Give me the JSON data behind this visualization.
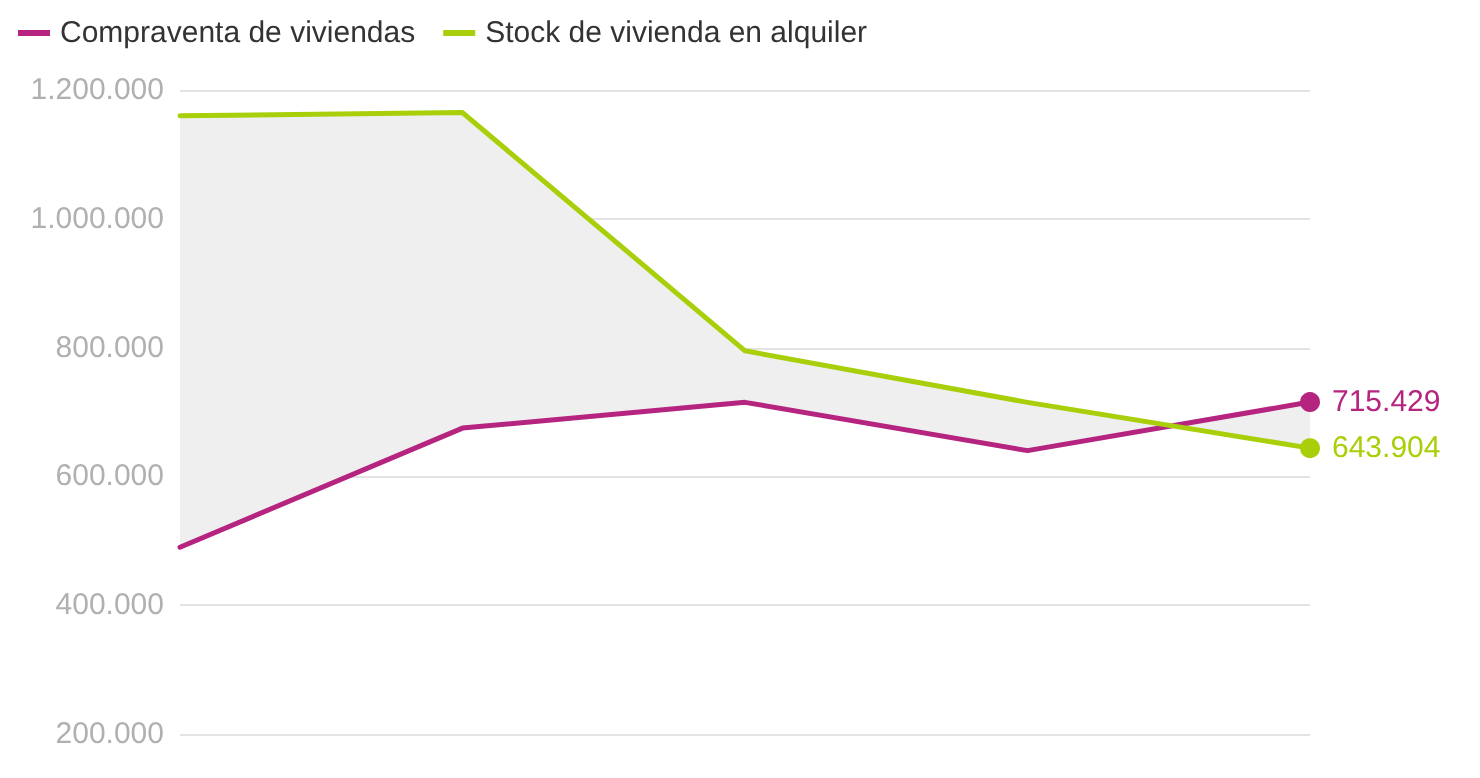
{
  "chart_data": {
    "type": "line",
    "categories": [
      null,
      null,
      null,
      null,
      null
    ],
    "series": [
      {
        "name": "Compraventa de viviendas",
        "color": "#b5247f",
        "values": [
          490000,
          675000,
          715000,
          640000,
          715429
        ],
        "value_labels": [
          null,
          null,
          null,
          null,
          "715.429"
        ]
      },
      {
        "name": "Stock de vivienda en alquiler",
        "color": "#a8cf0a",
        "values": [
          1160000,
          1165000,
          795000,
          715000,
          643904
        ],
        "value_labels": [
          null,
          null,
          null,
          null,
          "643.904"
        ],
        "lower": [
          490000,
          675000,
          715000,
          640000,
          715429
        ],
        "upper": [
          1160000,
          1165000,
          795000,
          715000,
          643904
        ]
      }
    ],
    "ylim": [
      200000,
      1200000
    ],
    "yticks": [
      {
        "value": 200000,
        "label": "200.000"
      },
      {
        "value": 400000,
        "label": "400.000"
      },
      {
        "value": 600000,
        "label": "600.000"
      },
      {
        "value": 800000,
        "label": "800.000"
      },
      {
        "value": 1000000,
        "label": "1.000.000"
      },
      {
        "value": 1200000,
        "label": "1.200.000"
      }
    ],
    "grid": "y",
    "legend": "top left",
    "tick_labels": "y",
    "line_style": "solid"
  }
}
